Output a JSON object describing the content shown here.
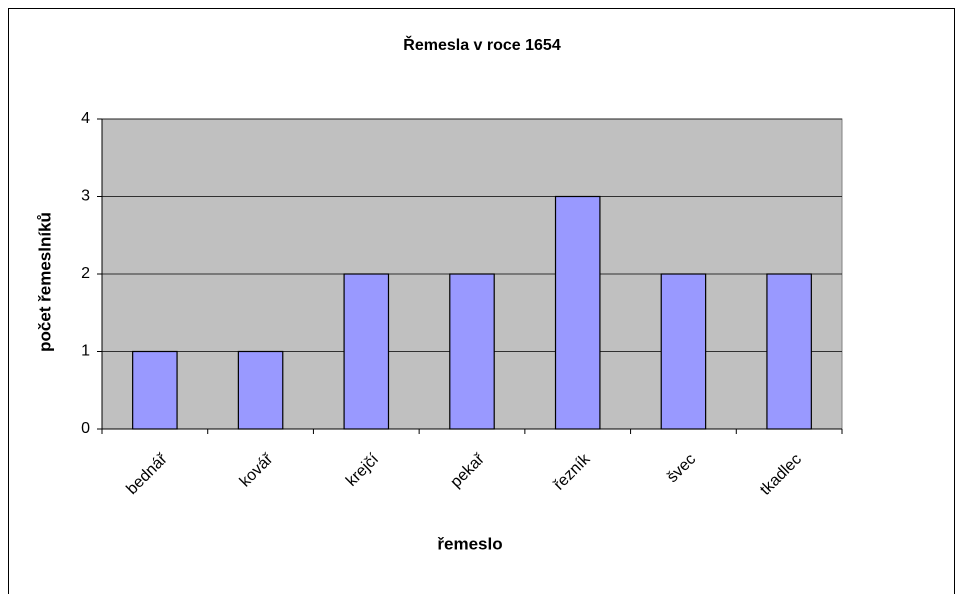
{
  "chart_data": {
    "type": "bar",
    "title": "Řemesla v roce 1654",
    "categories": [
      "bednář",
      "kovář",
      "krejčí",
      "pekař",
      "řezník",
      "švec",
      "tkadlec"
    ],
    "values": [
      1,
      1,
      2,
      2,
      3,
      2,
      2
    ],
    "color": "#9999ff",
    "xlabel": "řemeslo",
    "ylabel": "počet řemeslníků",
    "ylim": [
      0,
      4
    ],
    "yticks": [
      0,
      1,
      2,
      3,
      4
    ],
    "grid": true
  }
}
